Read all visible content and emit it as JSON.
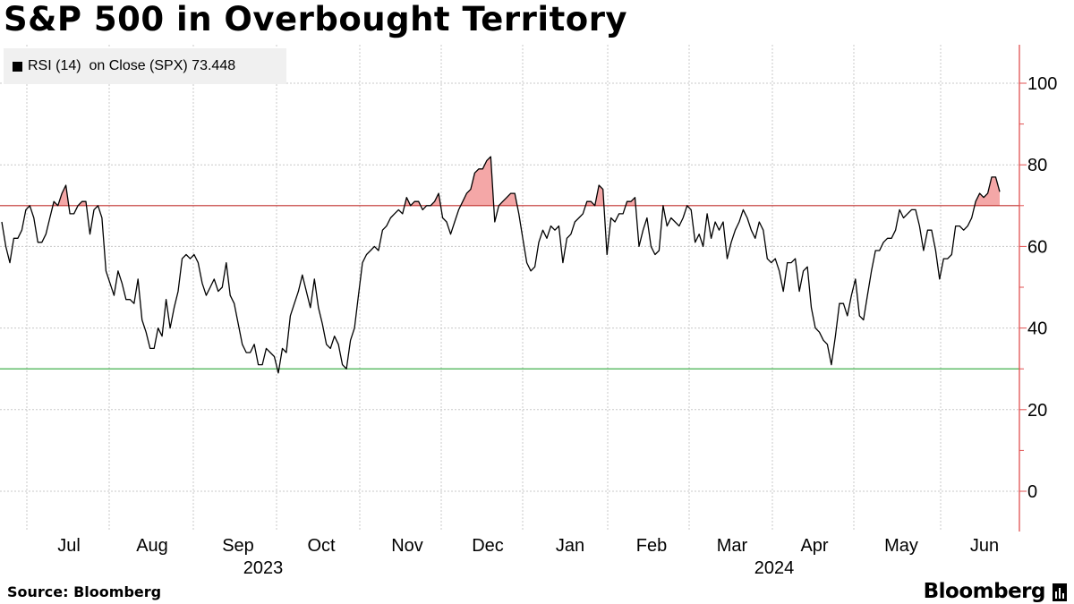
{
  "title": "S&P 500 in Overbought Territory",
  "legend": {
    "label": "RSI (14)  on Close (SPX) 73.448"
  },
  "footer": {
    "source": "Source: Bloomberg",
    "brand": "Bloomberg"
  },
  "colors": {
    "line": "#000000",
    "overbought_line": "#c0302f",
    "oversold_line": "#2fa83a",
    "overbought_fill": "#f08a8a",
    "axis": "#e05050",
    "grid": "#c8c8c8"
  },
  "chart_data": {
    "type": "line",
    "series": [
      {
        "name": "RSI (14)  on Close (SPX)",
        "last_value": 73.448,
        "values": [
          66,
          60,
          56,
          62,
          62,
          64,
          69,
          70,
          67,
          61,
          61,
          63,
          67,
          71,
          70,
          73,
          75,
          68,
          68,
          70,
          71,
          71,
          63,
          69,
          70,
          67,
          54,
          51,
          48,
          54,
          51,
          47,
          47,
          46,
          52,
          42,
          39,
          35,
          35,
          40,
          38,
          47,
          40,
          45,
          49,
          57,
          58,
          57,
          58,
          56,
          51,
          48,
          50,
          52,
          49,
          50,
          56,
          48,
          46,
          41,
          36,
          34,
          34,
          36,
          31,
          31,
          35,
          34,
          33,
          29,
          35,
          34,
          43,
          46,
          49,
          53,
          49,
          45,
          52,
          45,
          41,
          36,
          35,
          38,
          36,
          31,
          30,
          37,
          40,
          48,
          56,
          58,
          59,
          60,
          59,
          64,
          65,
          67,
          68,
          69,
          68,
          72,
          70,
          71,
          71,
          69,
          70,
          70,
          71,
          73,
          67,
          66,
          63,
          66,
          69,
          71,
          73,
          74,
          78,
          79,
          79,
          81,
          82,
          66,
          70,
          71,
          72,
          73,
          73,
          68,
          62,
          56,
          54,
          55,
          61,
          64,
          62,
          65,
          64,
          65,
          56,
          62,
          63,
          66,
          67,
          68,
          71,
          71,
          70,
          75,
          74,
          58,
          67,
          66,
          68,
          68,
          71,
          71,
          72,
          60,
          64,
          67,
          60,
          58,
          59,
          70,
          65,
          67,
          66,
          65,
          67,
          70,
          69,
          61,
          63,
          60,
          68,
          62,
          66,
          64,
          66,
          57,
          61,
          64,
          66,
          69,
          67,
          64,
          62,
          66,
          64,
          57,
          56,
          57,
          54,
          49,
          56,
          56,
          57,
          49,
          54,
          55,
          45,
          40,
          39,
          37,
          36,
          31,
          38,
          46,
          46,
          43,
          48,
          52,
          43,
          42,
          48,
          54,
          59,
          59,
          61,
          62,
          62,
          64,
          69,
          67,
          68,
          69,
          69,
          65,
          59,
          64,
          64,
          59,
          52,
          57,
          57,
          58,
          65,
          65,
          64,
          65,
          67,
          71,
          73,
          72,
          73,
          77,
          77,
          73.4
        ],
        "dates": [
          "2023-06-22",
          "2024-06-13"
        ]
      }
    ],
    "x_ticks": [
      "Jul",
      "Aug",
      "Sep",
      "Oct",
      "Nov",
      "Dec",
      "Jan",
      "Feb",
      "Mar",
      "Apr",
      "May",
      "Jun"
    ],
    "year_labels": [
      "2023",
      "2024"
    ],
    "yticks": [
      0,
      20,
      40,
      60,
      80,
      100
    ],
    "ylim": [
      -10,
      110
    ],
    "reference_lines": [
      70,
      30
    ],
    "title": "S&P 500 in Overbought Territory",
    "xlabel": "",
    "ylabel": "",
    "grid": true,
    "axis_side": "right"
  }
}
